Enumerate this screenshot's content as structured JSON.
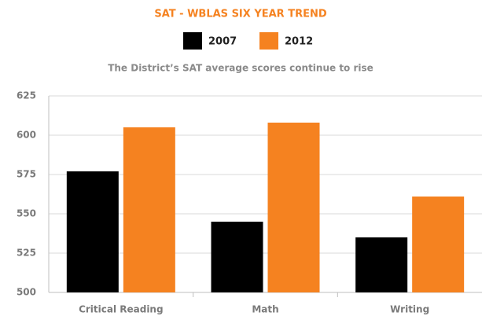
{
  "chart_data": {
    "type": "bar",
    "title": "SAT - WBLAS SIX YEAR TREND",
    "subtitle": "The District’s SAT average scores continue to rise",
    "categories": [
      "Critical Reading",
      "Math",
      "Writing"
    ],
    "series": [
      {
        "name": "2007",
        "color": "#000000",
        "values": [
          577,
          545,
          535
        ]
      },
      {
        "name": "2012",
        "color": "#f58220",
        "values": [
          605,
          608,
          561
        ]
      }
    ],
    "ylim": [
      500,
      625
    ],
    "yticks": [
      500,
      525,
      550,
      575,
      600,
      625
    ],
    "grid": true
  }
}
